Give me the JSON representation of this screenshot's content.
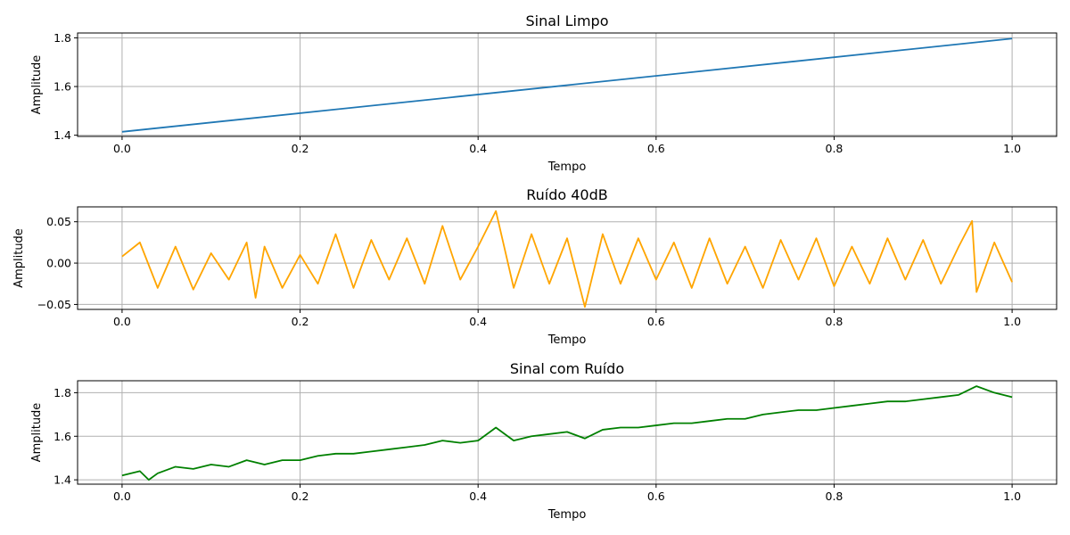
{
  "chart_data": [
    {
      "type": "line",
      "title": "Sinal Limpo",
      "xlabel": "Tempo",
      "ylabel": "Amplitude",
      "xlim": [
        -0.05,
        1.05
      ],
      "ylim": [
        1.395,
        1.82
      ],
      "xticks": [
        0.0,
        0.2,
        0.4,
        0.6,
        0.8,
        1.0
      ],
      "xtick_labels": [
        "0.0",
        "0.2",
        "0.4",
        "0.6",
        "0.8",
        "1.0"
      ],
      "yticks": [
        1.4,
        1.6,
        1.8
      ],
      "ytick_labels": [
        "1.4",
        "1.6",
        "1.8"
      ],
      "grid": true,
      "series": [
        {
          "color": "#1f77b4",
          "x": [
            0.0,
            1.0
          ],
          "y": [
            1.414,
            1.797
          ]
        }
      ]
    },
    {
      "type": "line",
      "title": "Ruído 40dB",
      "xlabel": "Tempo",
      "ylabel": "Amplitude",
      "xlim": [
        -0.05,
        1.05
      ],
      "ylim": [
        -0.056,
        0.068
      ],
      "xticks": [
        0.0,
        0.2,
        0.4,
        0.6,
        0.8,
        1.0
      ],
      "xtick_labels": [
        "0.0",
        "0.2",
        "0.4",
        "0.6",
        "0.8",
        "1.0"
      ],
      "yticks": [
        -0.05,
        0.0,
        0.05
      ],
      "ytick_labels": [
        "−0.05",
        "0.00",
        "0.05"
      ],
      "grid": true,
      "series": [
        {
          "color": "#ffa500",
          "x": [
            0.0,
            0.02,
            0.04,
            0.06,
            0.08,
            0.1,
            0.12,
            0.14,
            0.15,
            0.16,
            0.18,
            0.2,
            0.22,
            0.24,
            0.26,
            0.28,
            0.3,
            0.32,
            0.34,
            0.36,
            0.38,
            0.4,
            0.42,
            0.44,
            0.46,
            0.48,
            0.5,
            0.52,
            0.54,
            0.56,
            0.58,
            0.6,
            0.62,
            0.64,
            0.66,
            0.68,
            0.7,
            0.72,
            0.74,
            0.76,
            0.78,
            0.8,
            0.82,
            0.84,
            0.86,
            0.88,
            0.9,
            0.92,
            0.94,
            0.955,
            0.96,
            0.98,
            1.0
          ],
          "y": [
            0.008,
            0.025,
            -0.03,
            0.02,
            -0.032,
            0.012,
            -0.02,
            0.025,
            -0.042,
            0.02,
            -0.03,
            0.01,
            -0.025,
            0.035,
            -0.03,
            0.028,
            -0.02,
            0.03,
            -0.025,
            0.045,
            -0.02,
            0.02,
            0.063,
            -0.03,
            0.035,
            -0.025,
            0.03,
            -0.053,
            0.035,
            -0.025,
            0.03,
            -0.02,
            0.025,
            -0.03,
            0.03,
            -0.025,
            0.02,
            -0.03,
            0.028,
            -0.02,
            0.03,
            -0.028,
            0.02,
            -0.025,
            0.03,
            -0.02,
            0.028,
            -0.025,
            0.02,
            0.051,
            -0.035,
            0.025,
            -0.023
          ]
        }
      ]
    },
    {
      "type": "line",
      "title": "Sinal com Ruído",
      "xlabel": "Tempo",
      "ylabel": "Amplitude",
      "xlim": [
        -0.05,
        1.05
      ],
      "ylim": [
        1.38,
        1.855
      ],
      "xticks": [
        0.0,
        0.2,
        0.4,
        0.6,
        0.8,
        1.0
      ],
      "xtick_labels": [
        "0.0",
        "0.2",
        "0.4",
        "0.6",
        "0.8",
        "1.0"
      ],
      "yticks": [
        1.4,
        1.6,
        1.8
      ],
      "ytick_labels": [
        "1.4",
        "1.6",
        "1.8"
      ],
      "grid": true,
      "series": [
        {
          "color": "#008000",
          "x": [
            0.0,
            0.02,
            0.03,
            0.04,
            0.06,
            0.08,
            0.1,
            0.12,
            0.14,
            0.16,
            0.18,
            0.2,
            0.22,
            0.24,
            0.26,
            0.28,
            0.3,
            0.32,
            0.34,
            0.36,
            0.38,
            0.4,
            0.42,
            0.44,
            0.46,
            0.48,
            0.5,
            0.52,
            0.54,
            0.56,
            0.58,
            0.6,
            0.62,
            0.64,
            0.66,
            0.68,
            0.7,
            0.72,
            0.74,
            0.76,
            0.78,
            0.8,
            0.82,
            0.84,
            0.86,
            0.88,
            0.9,
            0.92,
            0.94,
            0.96,
            0.98,
            1.0
          ],
          "y": [
            1.42,
            1.44,
            1.4,
            1.43,
            1.46,
            1.45,
            1.47,
            1.46,
            1.49,
            1.47,
            1.49,
            1.49,
            1.51,
            1.52,
            1.52,
            1.53,
            1.54,
            1.55,
            1.56,
            1.58,
            1.57,
            1.58,
            1.64,
            1.58,
            1.6,
            1.61,
            1.62,
            1.59,
            1.63,
            1.64,
            1.64,
            1.65,
            1.66,
            1.66,
            1.67,
            1.68,
            1.68,
            1.7,
            1.71,
            1.72,
            1.72,
            1.73,
            1.74,
            1.75,
            1.76,
            1.76,
            1.77,
            1.78,
            1.79,
            1.83,
            1.8,
            1.78
          ]
        }
      ]
    }
  ]
}
